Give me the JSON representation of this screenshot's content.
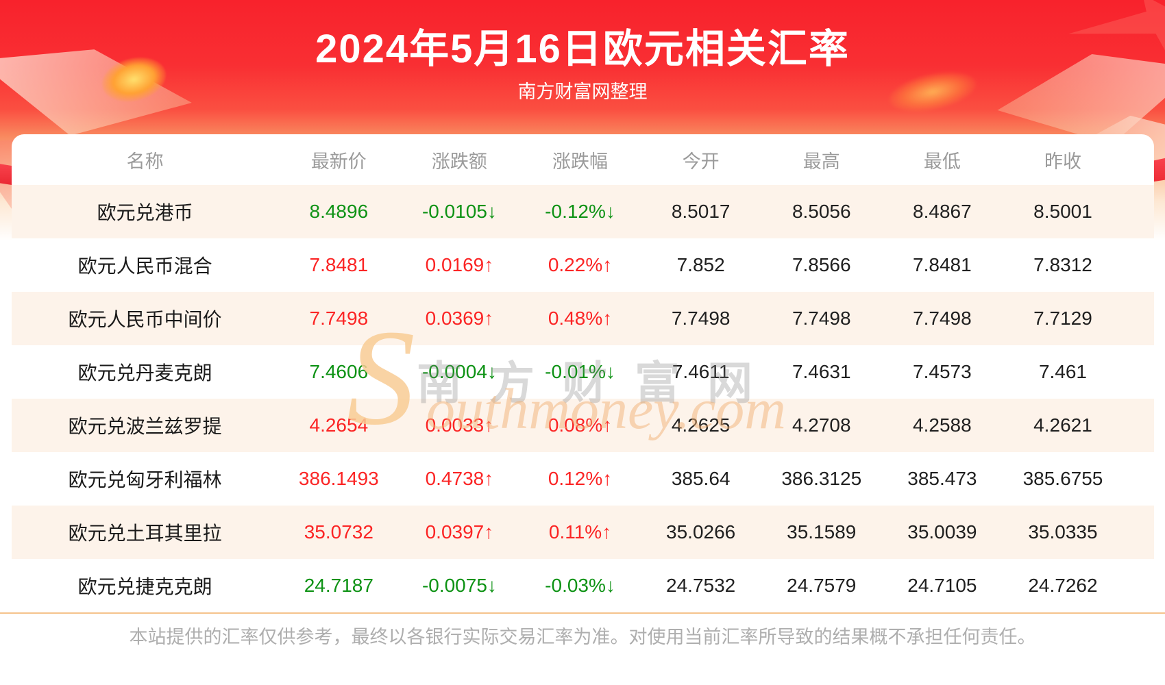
{
  "header": {
    "title": "2024年5月16日欧元相关汇率",
    "subtitle": "南方财富网整理"
  },
  "table": {
    "columns": [
      "名称",
      "最新价",
      "涨跌额",
      "涨跌幅",
      "今开",
      "最高",
      "最低",
      "昨收"
    ],
    "rows": [
      {
        "name": "欧元兑港币",
        "latest": "8.4896",
        "change": "-0.0105",
        "change_pct": "-0.12%",
        "trend": "down",
        "open": "8.5017",
        "high": "8.5056",
        "low": "8.4867",
        "prev_close": "8.5001"
      },
      {
        "name": "欧元人民币混合",
        "latest": "7.8481",
        "change": "0.0169",
        "change_pct": "0.22%",
        "trend": "up",
        "open": "7.852",
        "high": "7.8566",
        "low": "7.8481",
        "prev_close": "7.8312"
      },
      {
        "name": "欧元人民币中间价",
        "latest": "7.7498",
        "change": "0.0369",
        "change_pct": "0.48%",
        "trend": "up",
        "open": "7.7498",
        "high": "7.7498",
        "low": "7.7498",
        "prev_close": "7.7129"
      },
      {
        "name": "欧元兑丹麦克朗",
        "latest": "7.4606",
        "change": "-0.0004",
        "change_pct": "-0.01%",
        "trend": "down",
        "open": "7.4611",
        "high": "7.4631",
        "low": "7.4573",
        "prev_close": "7.461"
      },
      {
        "name": "欧元兑波兰兹罗提",
        "latest": "4.2654",
        "change": "0.0033",
        "change_pct": "0.08%",
        "trend": "up",
        "open": "4.2625",
        "high": "4.2708",
        "low": "4.2588",
        "prev_close": "4.2621"
      },
      {
        "name": "欧元兑匈牙利福林",
        "latest": "386.1493",
        "change": "0.4738",
        "change_pct": "0.12%",
        "trend": "up",
        "open": "385.64",
        "high": "386.3125",
        "low": "385.473",
        "prev_close": "385.6755"
      },
      {
        "name": "欧元兑土耳其里拉",
        "latest": "35.0732",
        "change": "0.0397",
        "change_pct": "0.11%",
        "trend": "up",
        "open": "35.0266",
        "high": "35.1589",
        "low": "35.0039",
        "prev_close": "35.0335"
      },
      {
        "name": "欧元兑捷克克朗",
        "latest": "24.7187",
        "change": "-0.0075",
        "change_pct": "-0.03%",
        "trend": "down",
        "open": "24.7532",
        "high": "24.7579",
        "low": "24.7105",
        "prev_close": "24.7262"
      }
    ],
    "arrows": {
      "up": "↑",
      "down": "↓"
    }
  },
  "watermark": {
    "cn": "南方财富网",
    "en_initial": "S",
    "en_rest": "outhmoney.com"
  },
  "footer": {
    "disclaimer": "本站提供的汇率仅供参考，最终以各银行实际交易汇率为准。对使用当前汇率所导致的结果概不承担任何责任。"
  },
  "colors": {
    "up": "#fb2424",
    "down": "#0d9214",
    "banner_red": "#f8222c",
    "row_alt_bg": "#fdf3ea",
    "divider": "#f5c38c"
  }
}
